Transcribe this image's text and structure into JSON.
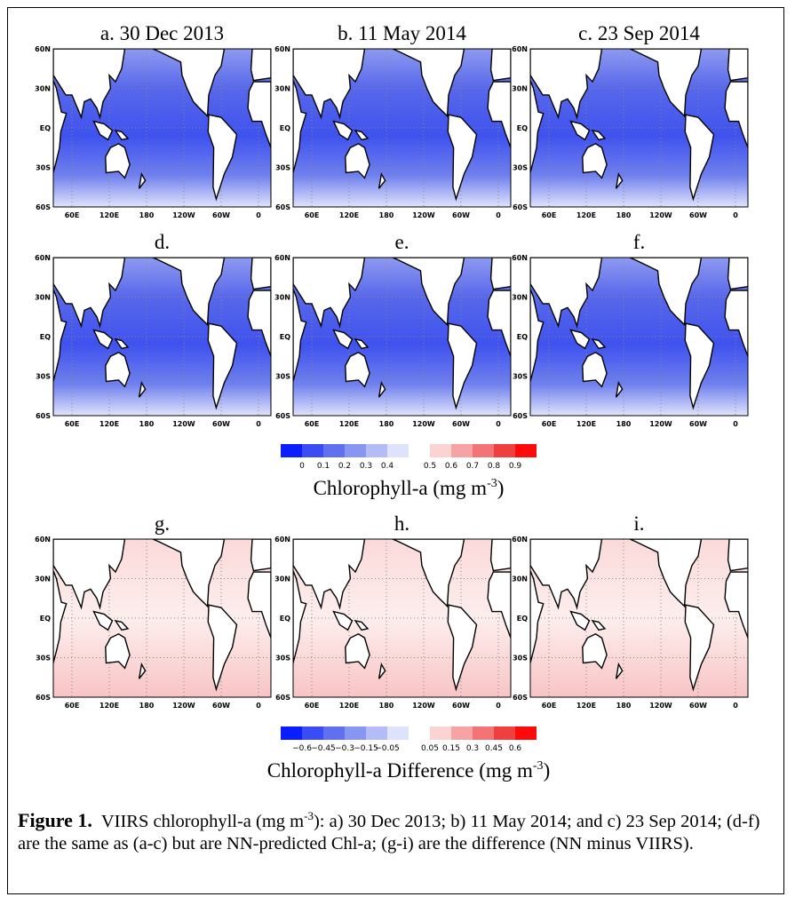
{
  "panels": [
    {
      "title": "a. 30 Dec 2013"
    },
    {
      "title": "b. 11 May 2014"
    },
    {
      "title": "c. 23 Sep 2014"
    },
    {
      "title": "d."
    },
    {
      "title": "e."
    },
    {
      "title": "f."
    },
    {
      "title": "g."
    },
    {
      "title": "h."
    },
    {
      "title": "i."
    }
  ],
  "lat_labels": [
    "60N",
    "30N",
    "EQ",
    "30S",
    "60S"
  ],
  "lon_labels": [
    "60E",
    "120E",
    "180",
    "120W",
    "60W",
    "0"
  ],
  "colorbars": [
    {
      "labels": [
        "0",
        "0.1",
        "0.2",
        "0.3",
        "0.4",
        "0.5",
        "0.6",
        "0.7",
        "0.8",
        "0.9"
      ],
      "colors": [
        "#0a1eff",
        "#3a4cf4",
        "#6070ee",
        "#8796f0",
        "#b3bcf6",
        "#dfe2fb",
        "#ffffff",
        "#fbd3d3",
        "#f7a3a3",
        "#f27474",
        "#ef3f3f",
        "#ff0a0a"
      ],
      "title": "Chlorophyll-a (mg m",
      "title_sup": "-3",
      "title_end": ")"
    },
    {
      "labels": [
        "−0.6",
        "−0.45",
        "−0.3",
        "−0.15",
        "−0.05",
        "0.05",
        "0.15",
        "0.3",
        "0.45",
        "0.6"
      ],
      "colors": [
        "#0a1eff",
        "#3a4cf4",
        "#6070ee",
        "#8796f0",
        "#b3bcf6",
        "#dfe2fb",
        "#ffffff",
        "#fbd3d3",
        "#f7a3a3",
        "#f27474",
        "#ef3f3f",
        "#ff0a0a"
      ],
      "title": "Chlorophyll-a Difference (mg m",
      "title_sup": "-3",
      "title_end": ")"
    }
  ],
  "caption": {
    "label": "Figure 1.",
    "text_1": "VIIRS chlorophyll-a (mg m",
    "sup": "-3",
    "text_2": "):  a) 30 Dec 2013; b) 11 May 2014; and c) 23 Sep 2014; (d-f) are the same as (a-c) but are NN-predicted Chl-a; (g-i) are the difference (NN minus VIIRS)."
  }
}
